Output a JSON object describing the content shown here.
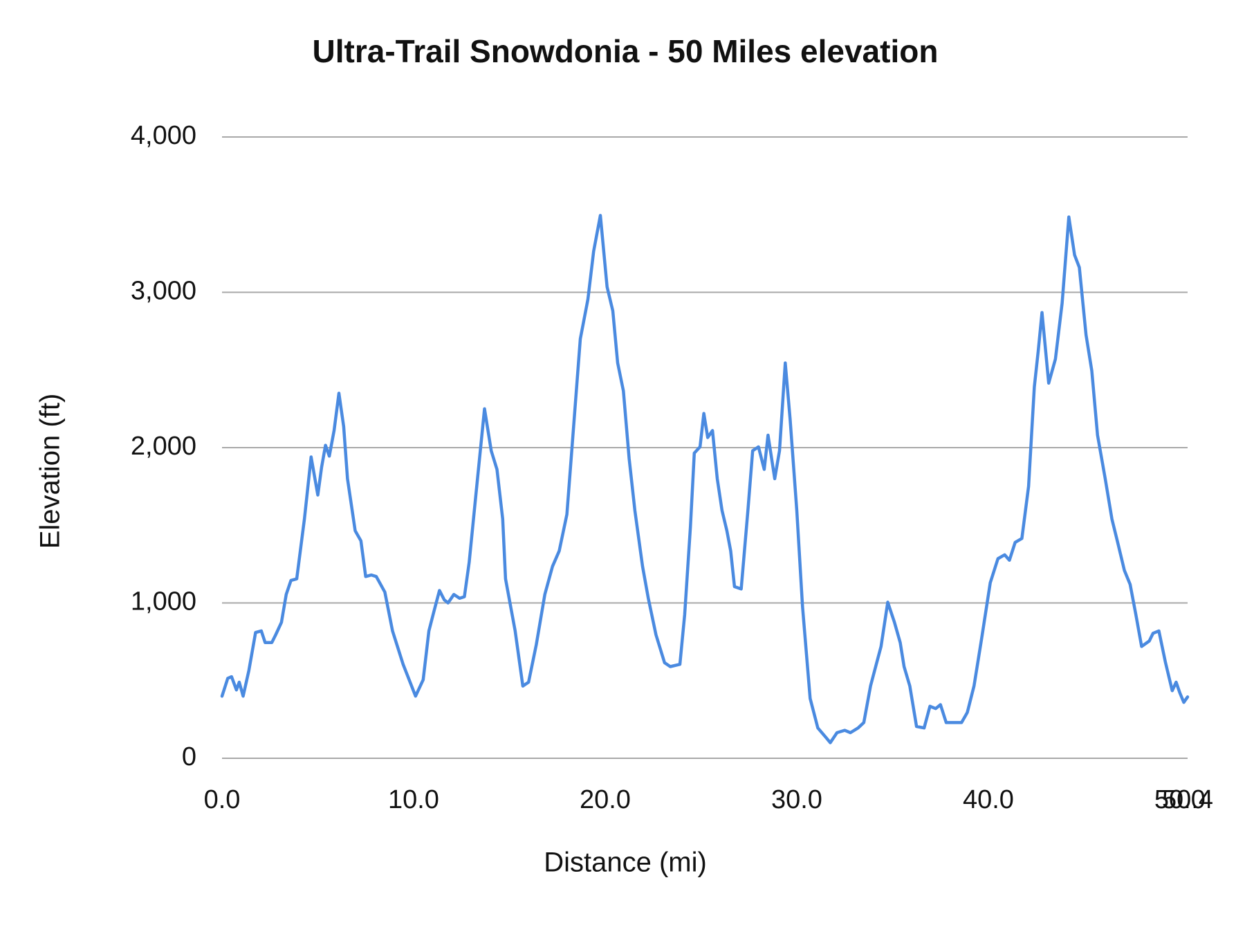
{
  "chart_data": {
    "type": "line",
    "title": "Ultra-Trail Snowdonia - 50 Miles elevation",
    "x_label": "Distance (mi)",
    "y_label": "Elevation (ft)",
    "color": "#4a8ae0",
    "grid": true,
    "xlim": [
      0,
      50.4
    ],
    "ylim": [
      0,
      4000
    ],
    "xticks": [
      {
        "value": 0,
        "label": "0.0"
      },
      {
        "value": 10,
        "label": "10.0"
      },
      {
        "value": 20,
        "label": "20.0"
      },
      {
        "value": 30,
        "label": "30.0"
      },
      {
        "value": 40,
        "label": "40.0"
      },
      {
        "value": 50,
        "label": "50.0"
      },
      50.4
    ],
    "yticks": [
      0,
      {
        "value": 1000,
        "label": "1,000"
      },
      {
        "value": 2000,
        "label": "2,000"
      },
      {
        "value": 3000,
        "label": "3,000"
      },
      {
        "value": 4000,
        "label": "4,000"
      }
    ],
    "x": [
      0,
      0.3,
      0.5,
      0.75,
      0.9,
      1.1,
      1.4,
      1.75,
      2.05,
      2.25,
      2.6,
      2.8,
      3.1,
      3.35,
      3.6,
      3.9,
      4.3,
      4.65,
      5.0,
      5.2,
      5.4,
      5.6,
      5.85,
      6.1,
      6.35,
      6.55,
      6.95,
      7.25,
      7.5,
      7.8,
      8.05,
      8.5,
      8.9,
      9.45,
      10.1,
      10.5,
      10.8,
      11.1,
      11.35,
      11.6,
      11.8,
      12.1,
      12.4,
      12.65,
      12.9,
      13.25,
      13.7,
      14.05,
      14.35,
      14.65,
      14.8,
      15.3,
      15.7,
      16.0,
      16.4,
      16.85,
      17.25,
      17.6,
      18.0,
      18.35,
      18.7,
      19.1,
      19.4,
      19.75,
      20.1,
      20.4,
      20.65,
      20.95,
      21.25,
      21.55,
      21.95,
      22.25,
      22.65,
      23.1,
      23.4,
      23.9,
      24.15,
      24.45,
      24.65,
      24.95,
      25.15,
      25.35,
      25.6,
      25.85,
      26.1,
      26.35,
      26.55,
      26.75,
      27.1,
      27.45,
      27.7,
      28.0,
      28.3,
      28.5,
      28.85,
      29.1,
      29.4,
      29.65,
      30.0,
      30.3,
      30.7,
      31.1,
      31.55,
      31.75,
      32.1,
      32.5,
      32.8,
      33.2,
      33.5,
      33.85,
      34.15,
      34.4,
      34.75,
      35.1,
      35.4,
      35.6,
      35.9,
      36.25,
      36.65,
      36.95,
      37.25,
      37.5,
      37.8,
      38.2,
      38.6,
      38.9,
      39.25,
      39.65,
      40.1,
      40.5,
      40.85,
      41.1,
      41.4,
      41.75,
      42.1,
      42.4,
      42.6,
      42.8,
      43.15,
      43.5,
      43.85,
      44.2,
      44.5,
      44.75,
      45.1,
      45.4,
      45.7,
      46.1,
      46.45,
      46.75,
      47.1,
      47.4,
      47.7,
      48.0,
      48.4,
      48.6,
      48.9,
      49.25,
      49.6,
      49.8,
      50.0,
      50.2,
      50.4
    ],
    "values": [
      400,
      515,
      525,
      440,
      490,
      400,
      565,
      810,
      820,
      745,
      745,
      795,
      875,
      1055,
      1145,
      1155,
      1540,
      1940,
      1695,
      1875,
      2015,
      1945,
      2110,
      2350,
      2135,
      1800,
      1465,
      1400,
      1170,
      1180,
      1170,
      1070,
      820,
      605,
      400,
      505,
      820,
      965,
      1080,
      1020,
      1000,
      1055,
      1030,
      1040,
      1260,
      1695,
      2250,
      1980,
      1860,
      1540,
      1155,
      820,
      465,
      490,
      730,
      1055,
      1235,
      1335,
      1570,
      2135,
      2700,
      2955,
      3265,
      3495,
      3035,
      2880,
      2545,
      2365,
      1930,
      1595,
      1235,
      1030,
      795,
      615,
      590,
      605,
      925,
      1490,
      1965,
      2005,
      2220,
      2065,
      2110,
      1800,
      1595,
      1465,
      1335,
      1105,
      1090,
      1595,
      1980,
      2005,
      1860,
      2080,
      1800,
      1980,
      2545,
      2185,
      1595,
      975,
      385,
      195,
      130,
      100,
      165,
      180,
      165,
      195,
      230,
      465,
      605,
      720,
      1005,
      875,
      745,
      590,
      465,
      205,
      195,
      335,
      320,
      345,
      230,
      230,
      230,
      295,
      465,
      770,
      1130,
      1285,
      1310,
      1275,
      1390,
      1415,
      1750,
      2390,
      2620,
      2870,
      2415,
      2570,
      2930,
      3485,
      3240,
      3160,
      2725,
      2495,
      2080,
      1800,
      1540,
      1390,
      1210,
      1120,
      925,
      720,
      755,
      805,
      820,
      615,
      435,
      490,
      420,
      360,
      395
    ]
  }
}
